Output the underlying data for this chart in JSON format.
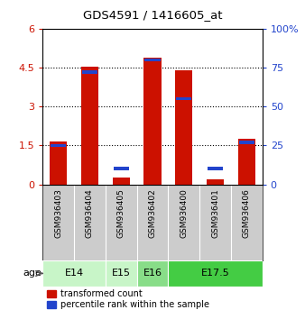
{
  "title": "GDS4591 / 1416605_at",
  "samples": [
    "GSM936403",
    "GSM936404",
    "GSM936405",
    "GSM936402",
    "GSM936400",
    "GSM936401",
    "GSM936406"
  ],
  "transformed_counts": [
    1.65,
    4.55,
    0.28,
    4.88,
    4.38,
    0.2,
    1.75
  ],
  "percentile_ranks_pct": [
    25,
    72,
    10,
    80,
    55,
    10,
    27
  ],
  "age_groups": [
    {
      "label": "E14",
      "start": 0,
      "end": 1,
      "color": "#c8f5c8"
    },
    {
      "label": "E15",
      "start": 2,
      "end": 2,
      "color": "#c8f5c8"
    },
    {
      "label": "E16",
      "start": 3,
      "end": 3,
      "color": "#88dd88"
    },
    {
      "label": "E17.5",
      "start": 4,
      "end": 6,
      "color": "#44cc44"
    }
  ],
  "ylim_left": [
    0,
    6
  ],
  "ylim_right": [
    0,
    100
  ],
  "yticks_left": [
    0,
    1.5,
    3,
    4.5,
    6
  ],
  "ytick_labels_left": [
    "0",
    "1.5",
    "3",
    "4.5",
    "6"
  ],
  "yticks_right": [
    0,
    25,
    50,
    75,
    100
  ],
  "ytick_labels_right": [
    "0",
    "25",
    "50",
    "75",
    "100%"
  ],
  "bar_color_red": "#cc1100",
  "bar_color_blue": "#2244cc",
  "bar_width": 0.55,
  "bg_color_sample": "#cccccc",
  "legend_red": "transformed count",
  "legend_blue": "percentile rank within the sample",
  "age_label": "age"
}
